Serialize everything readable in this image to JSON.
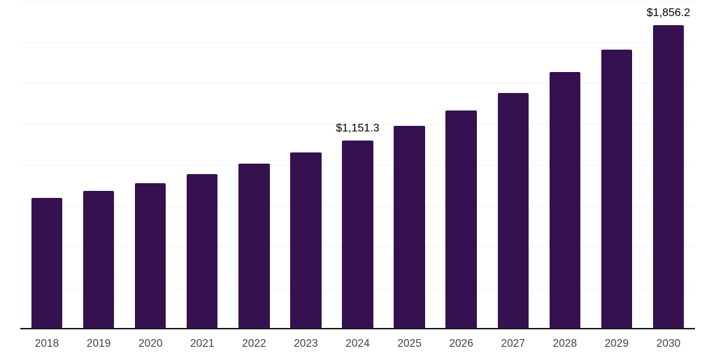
{
  "chart_data": {
    "type": "bar",
    "title": "",
    "xlabel": "",
    "ylabel": "",
    "categories": [
      "2018",
      "2019",
      "2020",
      "2021",
      "2022",
      "2023",
      "2024",
      "2025",
      "2026",
      "2027",
      "2028",
      "2029",
      "2030"
    ],
    "values": [
      798,
      841,
      890,
      943,
      1007,
      1076,
      1151.3,
      1239,
      1335,
      1441,
      1570,
      1705,
      1856.2
    ],
    "data_labels": [
      null,
      null,
      null,
      null,
      null,
      null,
      "$1,151.3",
      null,
      null,
      null,
      null,
      null,
      "$1,856.2"
    ],
    "ylim": [
      0,
      2000
    ],
    "gridline_step": 250,
    "grid_on": true,
    "legend": "none",
    "y_axis_labels_visible": false,
    "colors": {
      "bar": "#36114f",
      "grid": "#f0f0f0",
      "axis": "#1a1a1a",
      "tick_label": "#444444",
      "data_label": "#000000",
      "background": "#ffffff"
    }
  }
}
